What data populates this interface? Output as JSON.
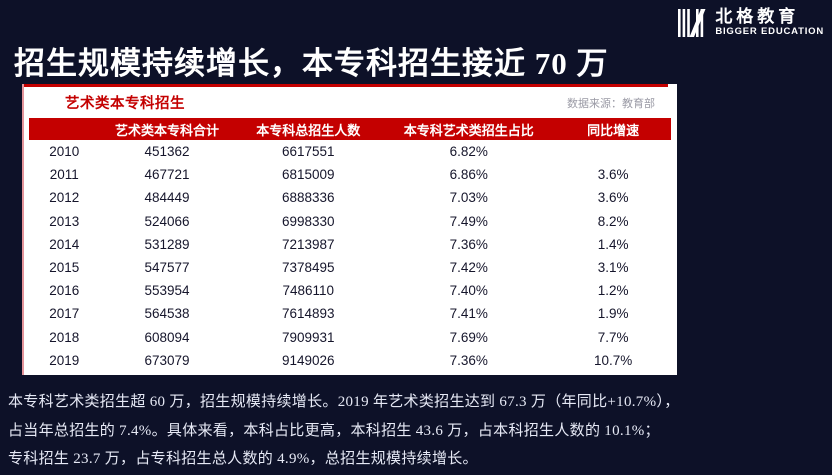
{
  "page": {
    "background": "#0d1128",
    "accent_red": "#c40000"
  },
  "logo": {
    "name_cn": "北格教育",
    "name_en": "BIGGER EDUCATION"
  },
  "title": "招生规模持续增长，本专科招生接近 70 万",
  "chart_data": {
    "type": "table",
    "title": "艺术类本专科招生",
    "source": "数据来源：教育部",
    "columns": [
      "",
      "艺术类本专科合计",
      "本专科总招生人数",
      "本专科艺术类招生占比",
      "同比增速"
    ],
    "rows": [
      [
        "2010",
        "451362",
        "6617551",
        "6.82%",
        ""
      ],
      [
        "2011",
        "467721",
        "6815009",
        "6.86%",
        "3.6%"
      ],
      [
        "2012",
        "484449",
        "6888336",
        "7.03%",
        "3.6%"
      ],
      [
        "2013",
        "524066",
        "6998330",
        "7.49%",
        "8.2%"
      ],
      [
        "2014",
        "531289",
        "7213987",
        "7.36%",
        "1.4%"
      ],
      [
        "2015",
        "547577",
        "7378495",
        "7.42%",
        "3.1%"
      ],
      [
        "2016",
        "553954",
        "7486110",
        "7.40%",
        "1.2%"
      ],
      [
        "2017",
        "564538",
        "7614893",
        "7.41%",
        "1.9%"
      ],
      [
        "2018",
        "608094",
        "7909931",
        "7.69%",
        "7.7%"
      ],
      [
        "2019",
        "673079",
        "9149026",
        "7.36%",
        "10.7%"
      ]
    ]
  },
  "footer": {
    "lines": [
      "本专科艺术类招生超 60 万，招生规模持续增长。2019 年艺术类招生达到 67.3 万（年同比+10.7%），",
      "占当年总招生的 7.4%。具体来看，本科占比更高，本科招生 43.6 万，占本科招生人数的 10.1%；",
      "专科招生 23.7 万，占专科招生总人数的 4.9%，总招生规模持续增长。"
    ]
  }
}
